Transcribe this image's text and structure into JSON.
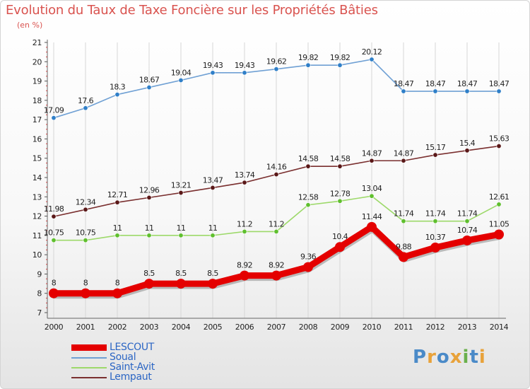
{
  "header": {
    "title": "Evolution du Taux de Taxe Foncière sur les Propriétés Bâties",
    "unit": "(en %)"
  },
  "logo": {
    "text": "Proxiti",
    "chars": [
      "P",
      "r",
      "o",
      "x",
      "i",
      "t",
      "i"
    ]
  },
  "chart_data": {
    "type": "line",
    "title": "Evolution du Taux de Taxe Foncière sur les Propriétés Bâties",
    "ylabel": "(en %)",
    "xlabel": "",
    "categories": [
      "2000",
      "2001",
      "2002",
      "2003",
      "2004",
      "2005",
      "2006",
      "2007",
      "2008",
      "2009",
      "2010",
      "2011",
      "2012",
      "2013",
      "2014"
    ],
    "ylim": [
      7,
      21
    ],
    "yticks": [
      "7",
      "8",
      "9",
      "10",
      "11",
      "12",
      "13",
      "14",
      "15",
      "16",
      "17",
      "18",
      "19",
      "20",
      "21"
    ],
    "legend_position": "bottom-left",
    "series": [
      {
        "name": "LESCOUT",
        "color": "#e40000",
        "bold": true,
        "values": [
          8,
          8,
          8,
          8.5,
          8.5,
          8.5,
          8.92,
          8.92,
          9.36,
          10.4,
          11.44,
          9.88,
          10.37,
          10.74,
          11.05
        ],
        "labels": [
          "8",
          "8",
          "8",
          "8.5",
          "8.5",
          "8.5",
          "8.92",
          "8.92",
          "9.36",
          "10.4",
          "11.44",
          "9.88",
          "10.37",
          "10.74",
          "11.05"
        ]
      },
      {
        "name": "Soual",
        "color": "#6fa0d4",
        "marker": "#2f7fc8",
        "values": [
          17.09,
          17.6,
          18.3,
          18.67,
          19.04,
          19.43,
          19.43,
          19.62,
          19.82,
          19.82,
          20.12,
          18.47,
          18.47,
          18.47,
          18.47
        ],
        "labels": [
          "17.09",
          "17.6",
          "18.3",
          "18.67",
          "19.04",
          "19.43",
          "19.43",
          "19.62",
          "19.82",
          "19.82",
          "20.12",
          "18.47",
          "18.47",
          "18.47",
          "18.47"
        ]
      },
      {
        "name": "Saint-Avit",
        "color": "#9dd96a",
        "marker": "#5fbf2e",
        "values": [
          10.75,
          10.75,
          11,
          11,
          11,
          11,
          11.2,
          11.2,
          12.58,
          12.78,
          13.04,
          11.74,
          11.74,
          11.74,
          12.61
        ],
        "labels": [
          "10.75",
          "10.75",
          "11",
          "11",
          "11",
          "11",
          "11.2",
          "11.2",
          "12.58",
          "12.78",
          "13.04",
          "11.74",
          "11.74",
          "11.74",
          "12.61"
        ]
      },
      {
        "name": "Lempaut",
        "color": "#7a2f2f",
        "marker": "#5a1818",
        "values": [
          11.98,
          12.34,
          12.71,
          12.96,
          13.21,
          13.47,
          13.74,
          14.16,
          14.58,
          14.58,
          14.87,
          14.87,
          15.17,
          15.4,
          15.63
        ],
        "labels": [
          "11.98",
          "12.34",
          "12.71",
          "12.96",
          "13.21",
          "13.47",
          "13.74",
          "14.16",
          "14.58",
          "14.58",
          "14.87",
          "14.87",
          "15.17",
          "15.4",
          "15.63"
        ]
      }
    ]
  }
}
